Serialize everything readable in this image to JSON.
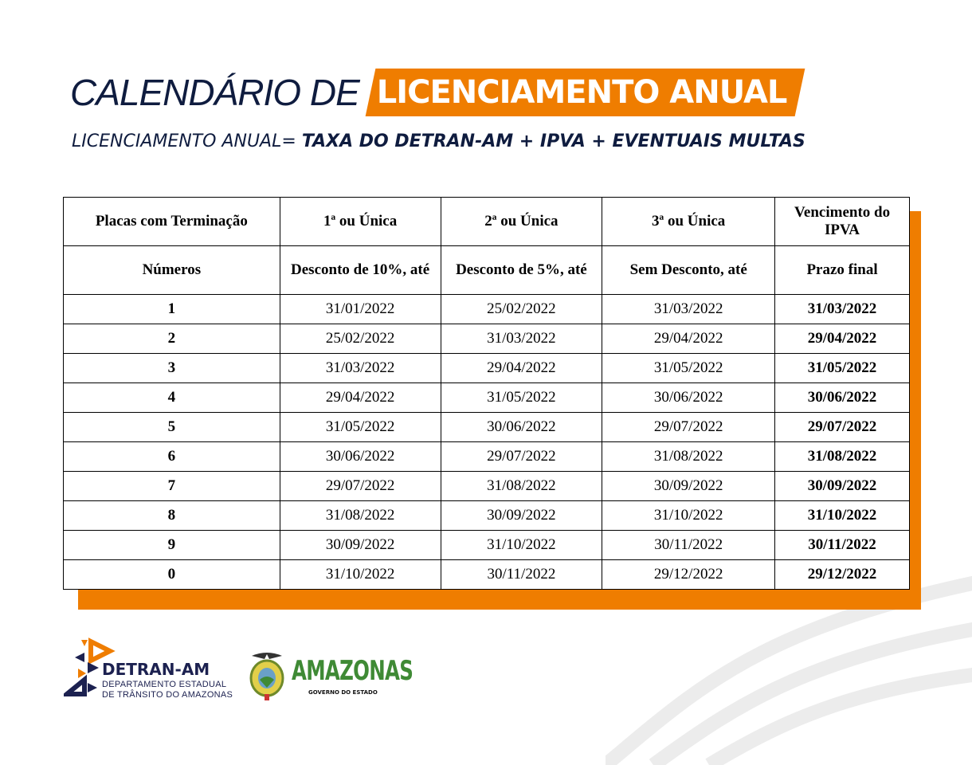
{
  "title": {
    "part1": "CALENDÁRIO DE",
    "part2": "LICENCIAMENTO ANUAL"
  },
  "subtitle": {
    "prefix": "LICENCIAMENTO ANUAL=",
    "bold": "TAXA DO DETRAN-AM + IPVA + EVENTUAIS MULTAS"
  },
  "colors": {
    "accent": "#ef7d00",
    "navy": "#0f1c3f",
    "green": "#3f8a35"
  },
  "table": {
    "header1": [
      "Placas com Terminação",
      "1ª ou Única",
      "2ª ou Única",
      "3ª ou Única",
      "Vencimento do IPVA"
    ],
    "header2": [
      "Números",
      "Desconto de 10%, até",
      "Desconto de 5%, até",
      "Sem Desconto, até",
      "Prazo final"
    ],
    "rows": [
      [
        "1",
        "31/01/2022",
        "25/02/2022",
        "31/03/2022",
        "31/03/2022"
      ],
      [
        "2",
        "25/02/2022",
        "31/03/2022",
        "29/04/2022",
        "29/04/2022"
      ],
      [
        "3",
        "31/03/2022",
        "29/04/2022",
        "31/05/2022",
        "31/05/2022"
      ],
      [
        "4",
        "29/04/2022",
        "31/05/2022",
        "30/06/2022",
        "30/06/2022"
      ],
      [
        "5",
        "31/05/2022",
        "30/06/2022",
        "29/07/2022",
        "29/07/2022"
      ],
      [
        "6",
        "30/06/2022",
        "29/07/2022",
        "31/08/2022",
        "31/08/2022"
      ],
      [
        "7",
        "29/07/2022",
        "31/08/2022",
        "30/09/2022",
        "30/09/2022"
      ],
      [
        "8",
        "31/08/2022",
        "30/09/2022",
        "31/10/2022",
        "31/10/2022"
      ],
      [
        "9",
        "30/09/2022",
        "31/10/2022",
        "30/11/2022",
        "30/11/2022"
      ],
      [
        "0",
        "31/10/2022",
        "30/11/2022",
        "29/12/2022",
        "29/12/2022"
      ]
    ]
  },
  "logos": {
    "detran": {
      "name": "DETRAN-AM",
      "line1": "DEPARTAMENTO  ESTADUAL",
      "line2": "DE TRÂNSITO DO AMAZONAS"
    },
    "amazonas": {
      "name": "AMAZONAS",
      "tagline": "GOVERNO DO ESTADO"
    }
  }
}
